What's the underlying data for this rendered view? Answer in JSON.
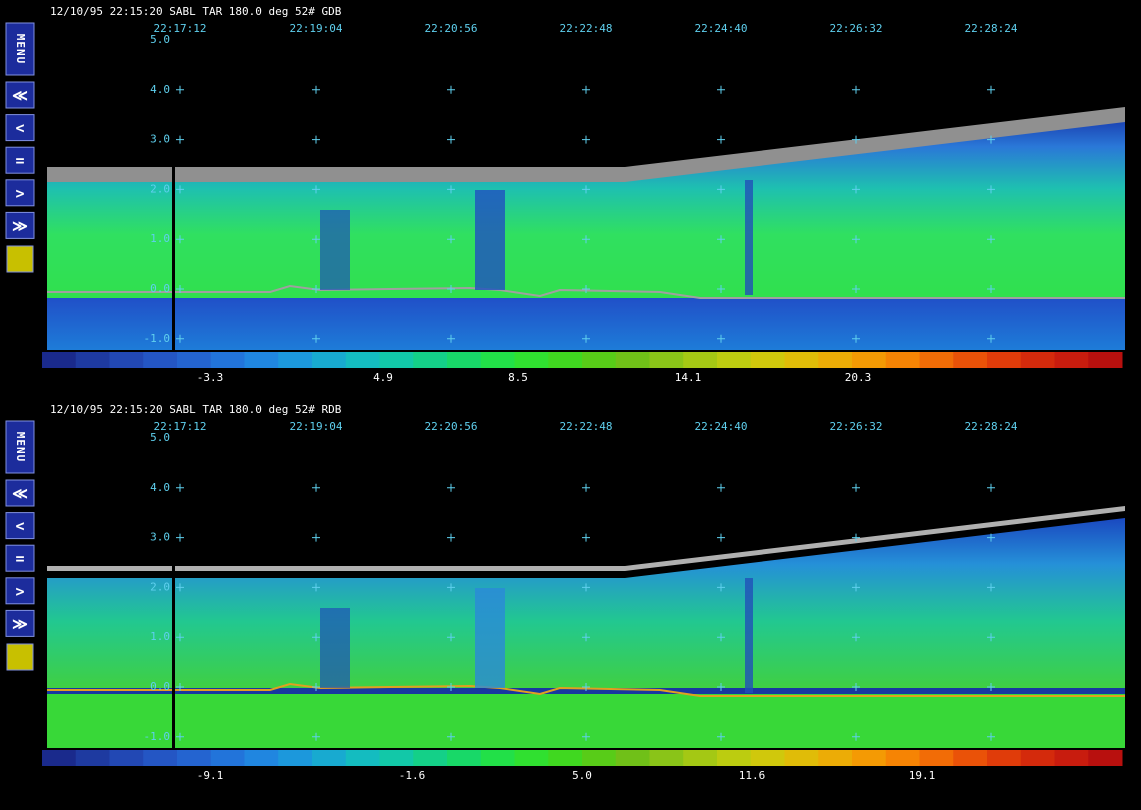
{
  "menu": {
    "label": "MENU",
    "buttons": [
      "≪",
      "<",
      "=",
      ">",
      "≫"
    ]
  },
  "panels": [
    {
      "header": "12/10/95 22:15:20  SABL    TAR 180.0 deg  52# GDB",
      "times": [
        "22:17:12",
        "22:19:04",
        "22:20:56",
        "22:22:48",
        "22:24:40",
        "22:26:32",
        "22:28:24"
      ],
      "y_labels": [
        "5.0",
        "4.0",
        "3.0",
        "2.0",
        "1.0",
        "0.0",
        "-1.0"
      ],
      "colorbar_labels": [
        "-3.3",
        "4.9",
        "8.5",
        "14.1",
        "20.3"
      ]
    },
    {
      "header": "12/10/95 22:15:20  SABL    TAR 180.0 deg  52# RDB",
      "times": [
        "22:17:12",
        "22:19:04",
        "22:20:56",
        "22:22:48",
        "22:24:40",
        "22:26:32",
        "22:28:24"
      ],
      "y_labels": [
        "5.0",
        "4.0",
        "3.0",
        "2.0",
        "1.0",
        "0.0",
        "-1.0"
      ],
      "colorbar_labels": [
        "-9.1",
        "-1.6",
        "5.0",
        "11.6",
        "19.1"
      ]
    }
  ]
}
